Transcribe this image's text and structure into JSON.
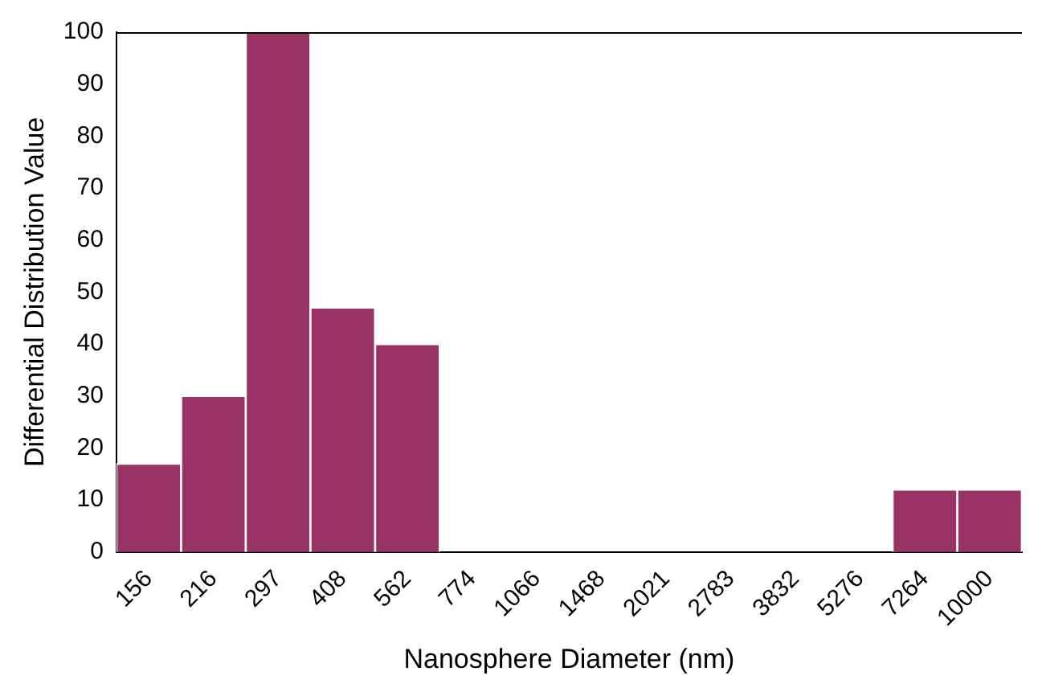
{
  "chart_data": {
    "type": "bar",
    "xlabel": "Nanosphere Diameter (nm)",
    "ylabel": "Differential Distribution Value",
    "categories": [
      "156",
      "216",
      "297",
      "408",
      "562",
      "774",
      "1066",
      "1468",
      "2021",
      "2783",
      "3832",
      "5276",
      "7264",
      "10000"
    ],
    "values": [
      17,
      30,
      100,
      47,
      40,
      0,
      0,
      0,
      0,
      0,
      0,
      0,
      12,
      12
    ],
    "color": "#993366",
    "ylim": [
      0,
      100
    ],
    "yticks": [
      0,
      10,
      20,
      30,
      40,
      50,
      60,
      70,
      80,
      90,
      100
    ],
    "grid": false,
    "legend": false
  }
}
